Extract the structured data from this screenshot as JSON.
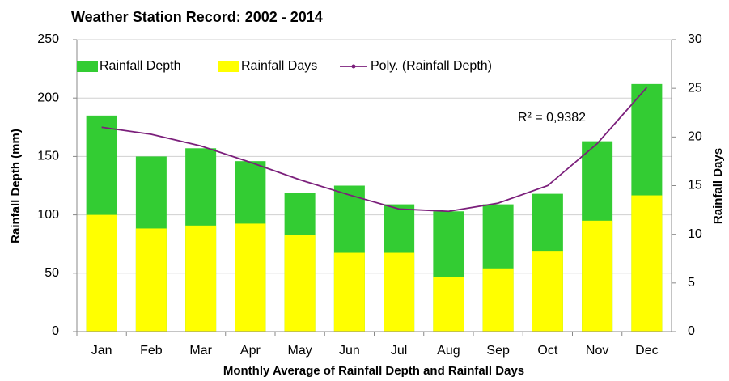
{
  "chart_data": {
    "type": "bar",
    "title": "Weather Station Record: 2002 - 2014",
    "x_label": "Monthly Average of Rainfall Depth and Rainfall Days",
    "y_label": "Rainfall Depth (mm)",
    "y2_label": "Rainfall Days",
    "annotation": "R² = 0,9382",
    "categories": [
      "Jan",
      "Feb",
      "Mar",
      "Apr",
      "May",
      "Jun",
      "Jul",
      "Aug",
      "Sep",
      "Oct",
      "Nov",
      "Dec"
    ],
    "series": [
      {
        "name": "Rainfall Depth",
        "color": "#33cc33",
        "values": [
          185,
          150,
          157,
          146,
          119,
          125,
          109,
          103,
          109,
          118,
          163,
          212
        ]
      },
      {
        "name": "Rainfall Days",
        "color": "#ffff00",
        "axis": "y2",
        "values": [
          12.0,
          10.6,
          10.9,
          11.1,
          9.9,
          8.1,
          8.1,
          5.6,
          6.5,
          8.3,
          11.4,
          14.0
        ]
      },
      {
        "name": "Poly. (Rainfall Depth)",
        "color": "#7b1f7b",
        "type": "line",
        "values": [
          175,
          169,
          159,
          145,
          130,
          117,
          105,
          103,
          110,
          125,
          161,
          209
        ]
      }
    ],
    "ylim": [
      0,
      250
    ],
    "yticks": [
      0,
      50,
      100,
      150,
      200,
      250
    ],
    "y2lim": [
      0,
      30
    ],
    "y2ticks": [
      0,
      5,
      10,
      15,
      20,
      25,
      30
    ],
    "grid": true,
    "legend": "top"
  }
}
